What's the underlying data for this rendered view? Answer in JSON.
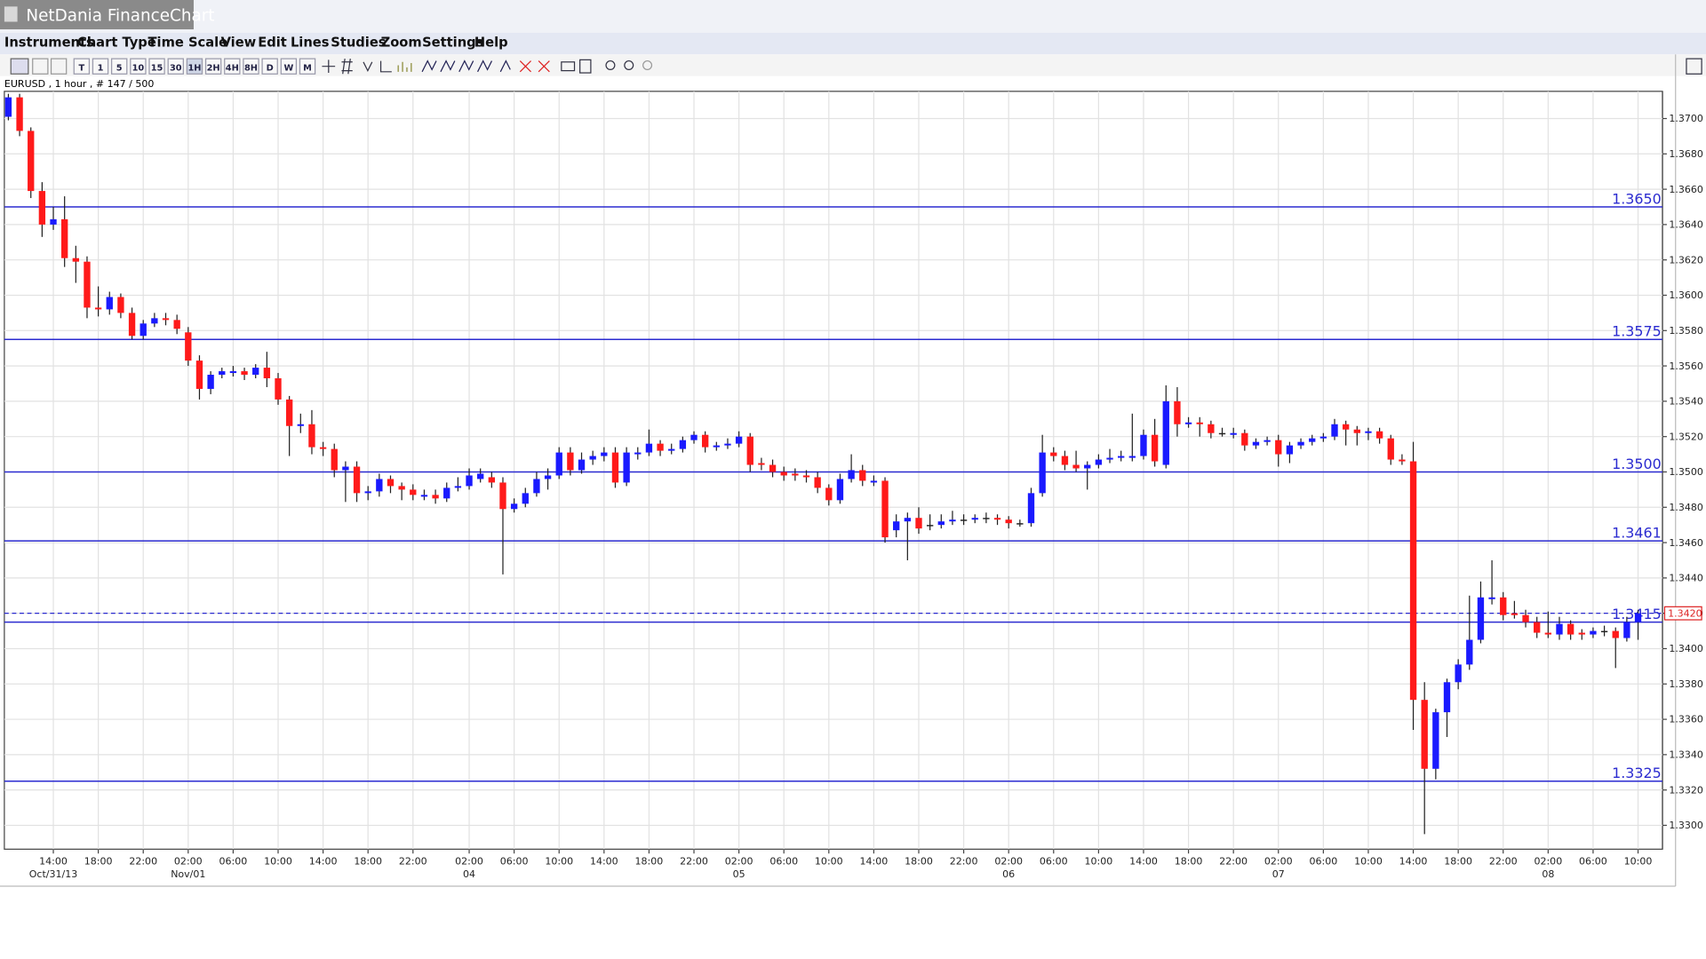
{
  "window_title": "NetDania FinanceChart",
  "menu": [
    "Instruments",
    "Chart Type",
    "Time Scale",
    "View",
    "Edit",
    "Lines",
    "Studies",
    "Zoom",
    "Settings",
    "Help"
  ],
  "toolbar": [
    "T",
    "1",
    "5",
    "10",
    "15",
    "30",
    "1H",
    "2H",
    "4H",
    "8H",
    "D",
    "W",
    "M"
  ],
  "chart_data": {
    "type": "candlestick",
    "title": "EURUSD , 1 hour , # 147 / 500",
    "ylim": [
      1.32865,
      1.37154
    ],
    "yticks": [
      {
        "value": 1.33,
        "label": "1.3300"
      },
      {
        "value": 1.332,
        "label": "1.3320"
      },
      {
        "value": 1.334,
        "label": "1.3340"
      },
      {
        "value": 1.336,
        "label": "1.3360"
      },
      {
        "value": 1.338,
        "label": "1.3380"
      },
      {
        "value": 1.34,
        "label": "1.3400"
      },
      {
        "value": 1.342,
        "label": "1.3420"
      },
      {
        "value": 1.344,
        "label": "1.3440"
      },
      {
        "value": 1.346,
        "label": "1.3460"
      },
      {
        "value": 1.348,
        "label": "1.3480"
      },
      {
        "value": 1.35,
        "label": "1.3500"
      },
      {
        "value": 1.352,
        "label": "1.3520"
      },
      {
        "value": 1.354,
        "label": "1.3540"
      },
      {
        "value": 1.356,
        "label": "1.3560"
      },
      {
        "value": 1.358,
        "label": "1.3580"
      },
      {
        "value": 1.36,
        "label": "1.3600"
      },
      {
        "value": 1.362,
        "label": "1.3620"
      },
      {
        "value": 1.364,
        "label": "1.3640"
      },
      {
        "value": 1.366,
        "label": "1.3660"
      },
      {
        "value": 1.368,
        "label": "1.3680"
      },
      {
        "value": 1.37,
        "label": "1.3700"
      }
    ],
    "grid": true,
    "up_color": "#1a1aff",
    "down_color": "#ff1a1a",
    "level_color": "#2b2bd0",
    "levels": [
      {
        "value": 1.365,
        "label": "1.3650"
      },
      {
        "value": 1.3575,
        "label": "1.3575"
      },
      {
        "value": 1.35,
        "label": "1.3500"
      },
      {
        "value": 1.3461,
        "label": "1.3461"
      },
      {
        "value": 1.3415,
        "label": "1.3415"
      },
      {
        "value": 1.3325,
        "label": "1.3325"
      }
    ],
    "current_price": {
      "value": 1.342,
      "label": "1.3420"
    },
    "xlabels": [
      {
        "index": 4,
        "time": "14:00",
        "date": "Oct/31/13"
      },
      {
        "index": 8,
        "time": "18:00"
      },
      {
        "index": 12,
        "time": "22:00"
      },
      {
        "index": 16,
        "time": "02:00",
        "date": "Nov/01"
      },
      {
        "index": 20,
        "time": "06:00"
      },
      {
        "index": 24,
        "time": "10:00"
      },
      {
        "index": 28,
        "time": "14:00"
      },
      {
        "index": 32,
        "time": "18:00"
      },
      {
        "index": 36,
        "time": "22:00"
      },
      {
        "index": 41,
        "time": "02:00",
        "date": "04"
      },
      {
        "index": 45,
        "time": "06:00"
      },
      {
        "index": 49,
        "time": "10:00"
      },
      {
        "index": 53,
        "time": "14:00"
      },
      {
        "index": 57,
        "time": "18:00"
      },
      {
        "index": 61,
        "time": "22:00"
      },
      {
        "index": 65,
        "time": "02:00",
        "date": "05"
      },
      {
        "index": 69,
        "time": "06:00"
      },
      {
        "index": 73,
        "time": "10:00"
      },
      {
        "index": 77,
        "time": "14:00"
      },
      {
        "index": 81,
        "time": "18:00"
      },
      {
        "index": 85,
        "time": "22:00"
      },
      {
        "index": 89,
        "time": "02:00",
        "date": "06"
      },
      {
        "index": 93,
        "time": "06:00"
      },
      {
        "index": 97,
        "time": "10:00"
      },
      {
        "index": 101,
        "time": "14:00"
      },
      {
        "index": 105,
        "time": "18:00"
      },
      {
        "index": 109,
        "time": "22:00"
      },
      {
        "index": 113,
        "time": "02:00",
        "date": "07"
      },
      {
        "index": 117,
        "time": "06:00"
      },
      {
        "index": 121,
        "time": "10:00"
      },
      {
        "index": 125,
        "time": "14:00"
      },
      {
        "index": 129,
        "time": "18:00"
      },
      {
        "index": 133,
        "time": "22:00"
      },
      {
        "index": 137,
        "time": "02:00",
        "date": "08"
      },
      {
        "index": 141,
        "time": "06:00"
      },
      {
        "index": 145,
        "time": "10:00"
      }
    ],
    "candles": [
      [
        1.3701,
        1.3714,
        1.3699,
        1.3712
      ],
      [
        1.3712,
        1.3714,
        1.369,
        1.3693
      ],
      [
        1.3693,
        1.3695,
        1.3655,
        1.3659
      ],
      [
        1.3659,
        1.3664,
        1.3633,
        1.364
      ],
      [
        1.364,
        1.365,
        1.3637,
        1.3643
      ],
      [
        1.3643,
        1.3656,
        1.3616,
        1.3621
      ],
      [
        1.3621,
        1.3628,
        1.3607,
        1.3619
      ],
      [
        1.3619,
        1.3622,
        1.3587,
        1.3593
      ],
      [
        1.3593,
        1.3605,
        1.3588,
        1.3592
      ],
      [
        1.3592,
        1.3602,
        1.3589,
        1.3599
      ],
      [
        1.3599,
        1.3601,
        1.3587,
        1.359
      ],
      [
        1.359,
        1.3593,
        1.3575,
        1.3577
      ],
      [
        1.3577,
        1.3586,
        1.3575,
        1.3584
      ],
      [
        1.3584,
        1.359,
        1.3582,
        1.3587
      ],
      [
        1.3587,
        1.359,
        1.3583,
        1.3586
      ],
      [
        1.3586,
        1.3589,
        1.3578,
        1.3581
      ],
      [
        1.3579,
        1.3582,
        1.356,
        1.3563
      ],
      [
        1.3563,
        1.3566,
        1.3541,
        1.3547
      ],
      [
        1.3547,
        1.3557,
        1.3544,
        1.3555
      ],
      [
        1.3555,
        1.3559,
        1.3553,
        1.3557
      ],
      [
        1.3556,
        1.356,
        1.3554,
        1.3557
      ],
      [
        1.3557,
        1.3559,
        1.3552,
        1.3555
      ],
      [
        1.3555,
        1.3561,
        1.3553,
        1.3559
      ],
      [
        1.3559,
        1.3568,
        1.3548,
        1.3553
      ],
      [
        1.3553,
        1.3556,
        1.3538,
        1.3541
      ],
      [
        1.3541,
        1.3543,
        1.3509,
        1.3526
      ],
      [
        1.3526,
        1.3533,
        1.3522,
        1.3527
      ],
      [
        1.3527,
        1.3535,
        1.351,
        1.3514
      ],
      [
        1.3514,
        1.3517,
        1.3509,
        1.3513
      ],
      [
        1.3513,
        1.3516,
        1.3497,
        1.3501
      ],
      [
        1.3501,
        1.3506,
        1.3483,
        1.3503
      ],
      [
        1.3503,
        1.3506,
        1.3483,
        1.3488
      ],
      [
        1.3488,
        1.3492,
        1.3484,
        1.3489
      ],
      [
        1.3489,
        1.3499,
        1.3486,
        1.3496
      ],
      [
        1.3496,
        1.3498,
        1.3488,
        1.3492
      ],
      [
        1.3492,
        1.3494,
        1.3484,
        1.349
      ],
      [
        1.349,
        1.3493,
        1.3484,
        1.3487
      ],
      [
        1.3486,
        1.349,
        1.3484,
        1.3487
      ],
      [
        1.3487,
        1.349,
        1.3482,
        1.3485
      ],
      [
        1.3485,
        1.3494,
        1.3483,
        1.3491
      ],
      [
        1.3491,
        1.3497,
        1.3489,
        1.3492
      ],
      [
        1.3492,
        1.3502,
        1.349,
        1.3498
      ],
      [
        1.3496,
        1.3502,
        1.3494,
        1.3499
      ],
      [
        1.3497,
        1.35,
        1.3491,
        1.3494
      ],
      [
        1.3494,
        1.3497,
        1.3442,
        1.3479
      ],
      [
        1.3479,
        1.3485,
        1.3477,
        1.3482
      ],
      [
        1.3482,
        1.3491,
        1.348,
        1.3488
      ],
      [
        1.3488,
        1.35,
        1.3486,
        1.3496
      ],
      [
        1.3496,
        1.3502,
        1.349,
        1.3498
      ],
      [
        1.3498,
        1.3514,
        1.3496,
        1.3511
      ],
      [
        1.3511,
        1.3514,
        1.3498,
        1.3501
      ],
      [
        1.3501,
        1.3511,
        1.3499,
        1.3507
      ],
      [
        1.3507,
        1.3512,
        1.3504,
        1.3509
      ],
      [
        1.3509,
        1.3514,
        1.3506,
        1.3511
      ],
      [
        1.3511,
        1.3514,
        1.3491,
        1.3494
      ],
      [
        1.3494,
        1.3514,
        1.3492,
        1.3511
      ],
      [
        1.351,
        1.3514,
        1.3507,
        1.3511
      ],
      [
        1.3511,
        1.3524,
        1.3509,
        1.3516
      ],
      [
        1.3516,
        1.3518,
        1.3509,
        1.3512
      ],
      [
        1.3512,
        1.3516,
        1.351,
        1.3513
      ],
      [
        1.3513,
        1.352,
        1.3511,
        1.3518
      ],
      [
        1.3518,
        1.3523,
        1.3516,
        1.3521
      ],
      [
        1.3521,
        1.3523,
        1.3511,
        1.3514
      ],
      [
        1.3514,
        1.3517,
        1.3512,
        1.3515
      ],
      [
        1.3515,
        1.3519,
        1.3513,
        1.3516
      ],
      [
        1.3516,
        1.3523,
        1.3514,
        1.352
      ],
      [
        1.352,
        1.3522,
        1.35,
        1.3504
      ],
      [
        1.3505,
        1.3508,
        1.3501,
        1.3504
      ],
      [
        1.3504,
        1.3507,
        1.3497,
        1.35
      ],
      [
        1.35,
        1.3503,
        1.3495,
        1.3498
      ],
      [
        1.3499,
        1.3502,
        1.3495,
        1.3498
      ],
      [
        1.3498,
        1.3501,
        1.3494,
        1.3497
      ],
      [
        1.3497,
        1.35,
        1.3488,
        1.3491
      ],
      [
        1.3491,
        1.3493,
        1.3481,
        1.3484
      ],
      [
        1.3484,
        1.3499,
        1.3482,
        1.3496
      ],
      [
        1.3496,
        1.351,
        1.3494,
        1.3501
      ],
      [
        1.3501,
        1.3504,
        1.3492,
        1.3495
      ],
      [
        1.3494,
        1.3498,
        1.3492,
        1.3495
      ],
      [
        1.3495,
        1.3497,
        1.346,
        1.3463
      ],
      [
        1.3467,
        1.3476,
        1.3463,
        1.3472
      ],
      [
        1.3472,
        1.3477,
        1.345,
        1.3474
      ],
      [
        1.3474,
        1.348,
        1.3465,
        1.3468
      ],
      [
        1.347,
        1.3476,
        1.3467,
        1.347
      ],
      [
        1.347,
        1.3476,
        1.3468,
        1.3472
      ],
      [
        1.3472,
        1.3478,
        1.347,
        1.3473
      ],
      [
        1.3473,
        1.3476,
        1.347,
        1.3473
      ],
      [
        1.3473,
        1.3476,
        1.3471,
        1.3474
      ],
      [
        1.3474,
        1.3477,
        1.3471,
        1.3474
      ],
      [
        1.3474,
        1.3476,
        1.347,
        1.3473
      ],
      [
        1.3473,
        1.3475,
        1.3468,
        1.3471
      ],
      [
        1.3471,
        1.3473,
        1.3469,
        1.3471
      ],
      [
        1.3471,
        1.3491,
        1.3469,
        1.3488
      ],
      [
        1.3488,
        1.3521,
        1.3486,
        1.3511
      ],
      [
        1.3511,
        1.3514,
        1.3506,
        1.3509
      ],
      [
        1.3509,
        1.3512,
        1.3501,
        1.3504
      ],
      [
        1.3504,
        1.3512,
        1.35,
        1.3502
      ],
      [
        1.3502,
        1.3506,
        1.349,
        1.3504
      ],
      [
        1.3504,
        1.351,
        1.3502,
        1.3507
      ],
      [
        1.3507,
        1.3513,
        1.3505,
        1.3508
      ],
      [
        1.3508,
        1.3512,
        1.3506,
        1.3509
      ],
      [
        1.3508,
        1.3533,
        1.3506,
        1.3509
      ],
      [
        1.3509,
        1.3524,
        1.3507,
        1.3521
      ],
      [
        1.3521,
        1.353,
        1.3503,
        1.3506
      ],
      [
        1.3504,
        1.3549,
        1.3502,
        1.354
      ],
      [
        1.354,
        1.3548,
        1.352,
        1.3527
      ],
      [
        1.3527,
        1.3531,
        1.3525,
        1.3528
      ],
      [
        1.3528,
        1.3531,
        1.352,
        1.3527
      ],
      [
        1.3527,
        1.3529,
        1.3519,
        1.3522
      ],
      [
        1.3522,
        1.3525,
        1.352,
        1.3522
      ],
      [
        1.3521,
        1.3525,
        1.3519,
        1.3522
      ],
      [
        1.3522,
        1.3524,
        1.3512,
        1.3515
      ],
      [
        1.3515,
        1.3519,
        1.3513,
        1.3517
      ],
      [
        1.3517,
        1.352,
        1.3515,
        1.3518
      ],
      [
        1.3518,
        1.3521,
        1.3503,
        1.351
      ],
      [
        1.351,
        1.3517,
        1.3505,
        1.3515
      ],
      [
        1.3515,
        1.3519,
        1.3513,
        1.3517
      ],
      [
        1.3517,
        1.3521,
        1.3515,
        1.3519
      ],
      [
        1.3519,
        1.3522,
        1.3517,
        1.352
      ],
      [
        1.352,
        1.353,
        1.3518,
        1.3527
      ],
      [
        1.3527,
        1.3529,
        1.3515,
        1.3524
      ],
      [
        1.3524,
        1.3526,
        1.3515,
        1.3522
      ],
      [
        1.3522,
        1.3525,
        1.3518,
        1.3523
      ],
      [
        1.3523,
        1.3525,
        1.3516,
        1.3519
      ],
      [
        1.3519,
        1.3521,
        1.3504,
        1.3507
      ],
      [
        1.3507,
        1.351,
        1.3504,
        1.3506
      ],
      [
        1.3506,
        1.3517,
        1.3354,
        1.3371
      ],
      [
        1.3371,
        1.3381,
        1.3295,
        1.3332
      ],
      [
        1.3332,
        1.3366,
        1.3326,
        1.3364
      ],
      [
        1.3364,
        1.3383,
        1.335,
        1.3381
      ],
      [
        1.3381,
        1.3394,
        1.3377,
        1.3391
      ],
      [
        1.3391,
        1.343,
        1.3388,
        1.3405
      ],
      [
        1.3405,
        1.3438,
        1.3403,
        1.3429
      ],
      [
        1.3428,
        1.345,
        1.3425,
        1.3429
      ],
      [
        1.3429,
        1.3432,
        1.3416,
        1.3419
      ],
      [
        1.342,
        1.3427,
        1.3417,
        1.3419
      ],
      [
        1.3419,
        1.3422,
        1.3412,
        1.3415
      ],
      [
        1.3415,
        1.3418,
        1.3406,
        1.3409
      ],
      [
        1.3409,
        1.3421,
        1.3406,
        1.3408
      ],
      [
        1.3408,
        1.3418,
        1.3405,
        1.3414
      ],
      [
        1.3414,
        1.3416,
        1.3405,
        1.3408
      ],
      [
        1.3409,
        1.3411,
        1.3405,
        1.3408
      ],
      [
        1.3408,
        1.3412,
        1.3406,
        1.341
      ],
      [
        1.341,
        1.3413,
        1.3407,
        1.341
      ],
      [
        1.341,
        1.3412,
        1.3389,
        1.3406
      ],
      [
        1.3406,
        1.3418,
        1.3404,
        1.3415
      ],
      [
        1.3415,
        1.3422,
        1.3405,
        1.342
      ]
    ]
  }
}
